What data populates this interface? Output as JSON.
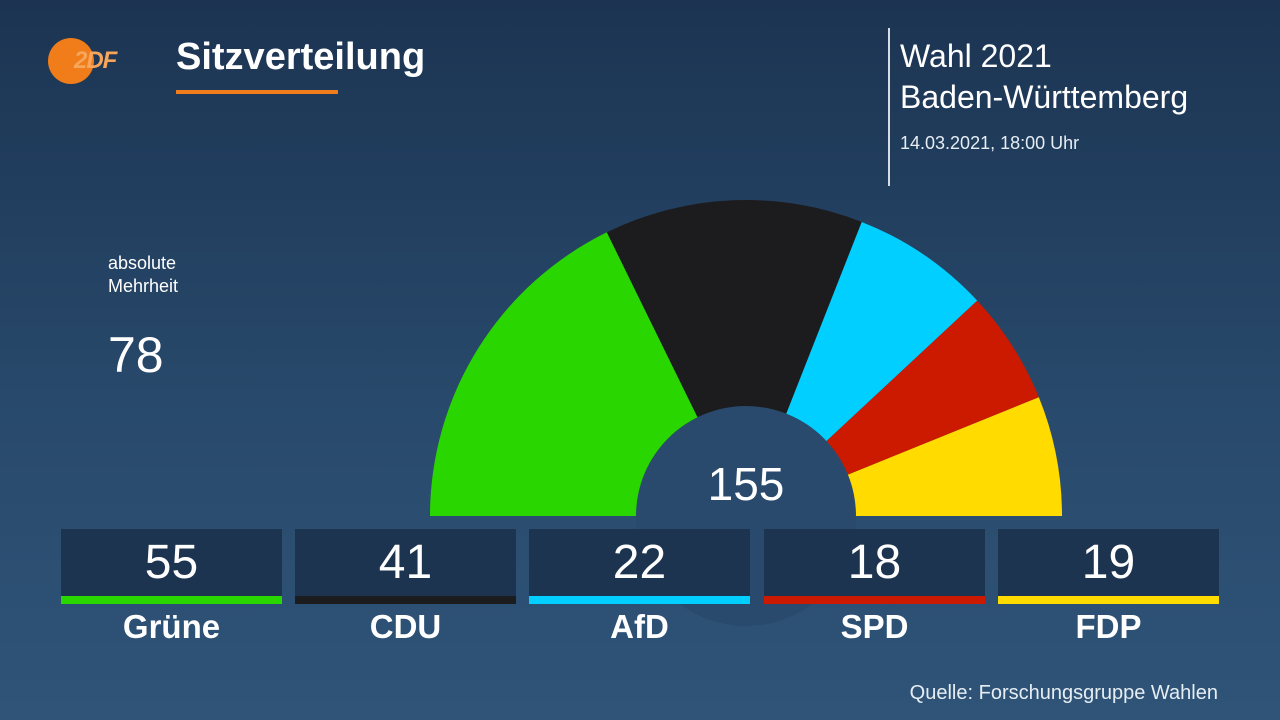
{
  "header": {
    "logo_text": "2DF",
    "title": "Sitzverteilung",
    "election_line1": "Wahl 2021",
    "election_line2": "Baden-Württemberg",
    "datetime": "14.03.2021, 18:00 Uhr"
  },
  "majority": {
    "label_line1": "absolute",
    "label_line2": "Mehrheit",
    "value": "78"
  },
  "source": "Quelle: Forschungsgruppe Wahlen",
  "chart_data": {
    "type": "pie",
    "subtype": "half-donut parliament seat distribution",
    "title": "Sitzverteilung",
    "total": 155,
    "total_label": "155",
    "categories": [
      "Grüne",
      "CDU",
      "AfD",
      "SPD",
      "FDP"
    ],
    "values": [
      55,
      41,
      22,
      18,
      19
    ],
    "colors": [
      "#2ad600",
      "#1c1c1e",
      "#00cfff",
      "#cc1a00",
      "#ffdb00"
    ]
  }
}
